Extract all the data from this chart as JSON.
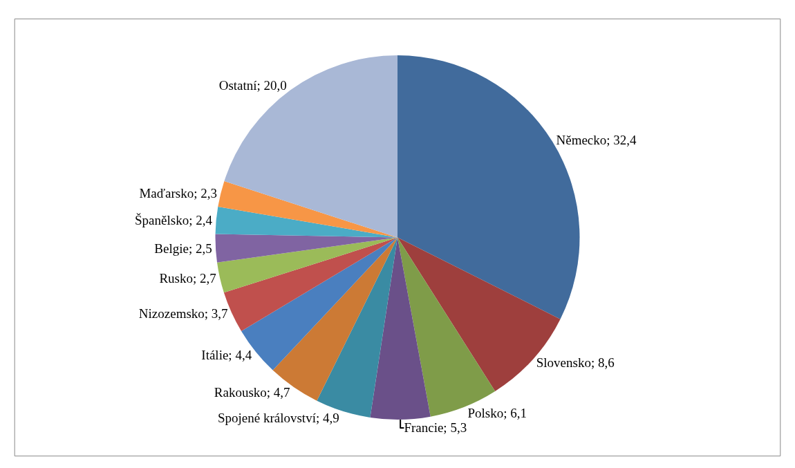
{
  "chart_data": {
    "type": "pie",
    "categories": [
      "Německo",
      "Slovensko",
      "Polsko",
      "Francie",
      "Spojené království",
      "Rakousko",
      "Itálie",
      "Nizozemsko",
      "Rusko",
      "Belgie",
      "Španělsko",
      "Maďarsko",
      "Ostatní"
    ],
    "values": [
      32.4,
      8.6,
      6.1,
      5.3,
      4.9,
      4.7,
      4.4,
      3.7,
      2.7,
      2.5,
      2.4,
      2.3,
      20.0
    ],
    "value_labels": [
      "32,4",
      "8,6",
      "6,1",
      "5,3",
      "4,9",
      "4,7",
      "4,4",
      "3,7",
      "2,7",
      "2,5",
      "2,4",
      "2,3",
      "20,0"
    ],
    "colors": [
      "#416b9c",
      "#9e3f3d",
      "#7f9c49",
      "#6a5089",
      "#3a8ba3",
      "#cc7a35",
      "#4a7fbf",
      "#c0504d",
      "#9bbb59",
      "#8064a2",
      "#4bacc6",
      "#f79646",
      "#a9b8d6"
    ],
    "legend": false
  }
}
